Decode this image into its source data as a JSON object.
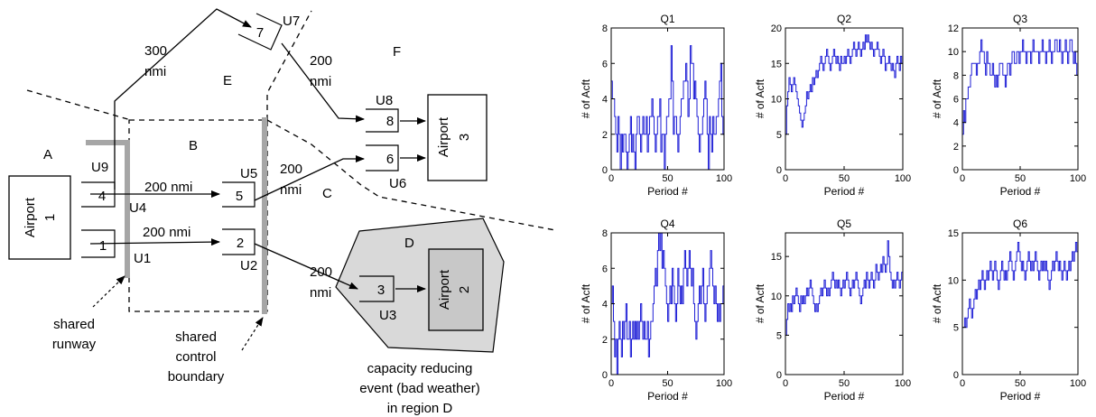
{
  "diagram": {
    "regions": {
      "a": "A",
      "b": "B",
      "c": "C",
      "d": "D",
      "e": "E",
      "f": "F"
    },
    "airports": {
      "airport1": {
        "name": "Airport",
        "number": "1"
      },
      "airport2": {
        "name": "Airport",
        "number": "2"
      },
      "airport3": {
        "name": "Airport",
        "number": "3"
      }
    },
    "queues": {
      "q1": "1",
      "q2": "2",
      "q3": "3",
      "q4": "4",
      "q5": "5",
      "q6": "6",
      "q7": "7",
      "q8": "8"
    },
    "units": {
      "u1": "U1",
      "u2": "U2",
      "u3": "U3",
      "u4": "U4",
      "u5": "U5",
      "u6": "U6",
      "u7": "U7",
      "u8": "U8",
      "u9": "U9"
    },
    "distances": {
      "d_4_5": "200  nmi",
      "d_1_2": "200  nmi",
      "d_5_6_num": "200",
      "d_5_6_unit": "nmi",
      "d_2_3_num": "200",
      "d_2_3_unit": "nmi",
      "d_7_8_num": "200",
      "d_7_8_unit": "nmi",
      "d_4_7_num": "300",
      "d_4_7_unit": "nmi"
    },
    "annotations": {
      "shared_runway_1": "shared",
      "shared_runway_2": "runway",
      "shared_boundary_1": "shared",
      "shared_boundary_2": "control",
      "shared_boundary_3": "boundary",
      "event_1": "capacity reducing",
      "event_2": "event (bad weather)",
      "event_3": "in region D"
    },
    "colors": {
      "shade": "#d9d9d9",
      "shared_bar": "#a6a6a6",
      "line": "#000000"
    }
  },
  "chart_data": [
    {
      "type": "line",
      "title": "Q1",
      "xlabel": "Period #",
      "ylabel": "# of Acft",
      "xlim": [
        0,
        100
      ],
      "ylim": [
        0,
        8
      ],
      "xticks": [
        0,
        50,
        100
      ],
      "yticks": [
        0,
        2,
        4,
        6,
        8
      ],
      "series_color": "#1f1fd6",
      "values": [
        5,
        4,
        4,
        3,
        2,
        1,
        3,
        2,
        0,
        2,
        1,
        2,
        2,
        1,
        0,
        1,
        2,
        3,
        1,
        2,
        1,
        0,
        2,
        3,
        3,
        2,
        1,
        2,
        3,
        2,
        2,
        3,
        1,
        2,
        3,
        3,
        4,
        3,
        2,
        1,
        2,
        3,
        3,
        4,
        1,
        2,
        2,
        0,
        2,
        3,
        3,
        4,
        4,
        7,
        5,
        2,
        3,
        3,
        2,
        1,
        2,
        3,
        4,
        4,
        5,
        5,
        6,
        5,
        3,
        4,
        7,
        6,
        6,
        4,
        5,
        4,
        3,
        2,
        1,
        2,
        2,
        3,
        4,
        5,
        4,
        2,
        0,
        3,
        2,
        1,
        3,
        2,
        2,
        3,
        3,
        4,
        5,
        6,
        3,
        2,
        2
      ]
    },
    {
      "type": "line",
      "title": "Q2",
      "xlabel": "Period #",
      "ylabel": "# of Acft",
      "xlim": [
        0,
        100
      ],
      "ylim": [
        0,
        20
      ],
      "xticks": [
        0,
        50,
        100
      ],
      "yticks": [
        0,
        5,
        10,
        15,
        20
      ],
      "series_color": "#1f1fd6",
      "values": [
        5,
        9,
        11,
        13,
        12,
        11,
        12,
        13,
        12,
        11,
        10,
        9,
        8,
        7,
        6,
        7,
        8,
        9,
        11,
        10,
        11,
        12,
        11,
        13,
        12,
        13,
        14,
        13,
        14,
        15,
        16,
        15,
        14,
        15,
        16,
        17,
        16,
        15,
        14,
        15,
        16,
        17,
        16,
        15,
        16,
        15,
        14,
        16,
        15,
        15,
        16,
        15,
        16,
        17,
        16,
        15,
        16,
        17,
        18,
        17,
        16,
        17,
        18,
        17,
        16,
        17,
        18,
        17,
        19,
        18,
        19,
        18,
        17,
        18,
        17,
        16,
        17,
        17,
        18,
        17,
        16,
        15,
        16,
        17,
        16,
        14,
        15,
        15,
        16,
        15,
        14,
        15,
        14,
        13,
        15,
        16,
        15,
        14,
        16,
        15,
        14
      ]
    },
    {
      "type": "line",
      "title": "Q3",
      "xlabel": "Period #",
      "ylabel": "# of Acft",
      "xlim": [
        0,
        100
      ],
      "ylim": [
        0,
        12
      ],
      "xticks": [
        0,
        50,
        100
      ],
      "yticks": [
        0,
        2,
        4,
        6,
        8,
        10,
        12
      ],
      "series_color": "#1f1fd6",
      "values": [
        3,
        5,
        4,
        6,
        6,
        7,
        7,
        8,
        9,
        9,
        9,
        9,
        8,
        9,
        9,
        10,
        11,
        10,
        10,
        9,
        8,
        10,
        9,
        9,
        8,
        8,
        9,
        8,
        7,
        8,
        7,
        8,
        9,
        9,
        9,
        8,
        8,
        7,
        8,
        9,
        9,
        8,
        9,
        10,
        10,
        9,
        9,
        10,
        10,
        9,
        10,
        10,
        11,
        10,
        10,
        9,
        10,
        10,
        10,
        9,
        10,
        11,
        10,
        10,
        10,
        10,
        9,
        10,
        10,
        11,
        10,
        10,
        9,
        10,
        10,
        11,
        10,
        9,
        10,
        10,
        11,
        11,
        10,
        10,
        11,
        10,
        9,
        10,
        10,
        11,
        10,
        9,
        10,
        11,
        11,
        10,
        9,
        10,
        9,
        8,
        8
      ]
    },
    {
      "type": "line",
      "title": "Q4",
      "xlabel": "Period #",
      "ylabel": "# of Acft",
      "xlim": [
        0,
        100
      ],
      "ylim": [
        0,
        8
      ],
      "xticks": [
        0,
        50,
        100
      ],
      "yticks": [
        0,
        2,
        4,
        6,
        8
      ],
      "series_color": "#1f1fd6",
      "values": [
        4,
        5,
        3,
        1,
        2,
        0,
        2,
        3,
        2,
        1,
        3,
        2,
        3,
        4,
        2,
        2,
        3,
        1,
        2,
        3,
        2,
        3,
        2,
        3,
        2,
        3,
        4,
        3,
        2,
        3,
        2,
        2,
        3,
        1,
        2,
        3,
        3,
        4,
        5,
        6,
        5,
        7,
        8,
        7,
        8,
        6,
        7,
        6,
        5,
        4,
        3,
        4,
        5,
        4,
        6,
        5,
        4,
        3,
        4,
        6,
        5,
        4,
        5,
        4,
        6,
        7,
        6,
        5,
        6,
        7,
        6,
        5,
        6,
        4,
        3,
        2,
        3,
        4,
        5,
        4,
        5,
        6,
        4,
        3,
        4,
        5,
        5,
        6,
        7,
        6,
        5,
        4,
        5,
        4,
        3,
        4,
        3,
        4,
        4,
        5,
        4
      ]
    },
    {
      "type": "line",
      "title": "Q5",
      "xlabel": "Period #",
      "ylabel": "# of Acft",
      "xlim": [
        0,
        100
      ],
      "ylim": [
        0,
        18
      ],
      "xticks": [
        0,
        50,
        100
      ],
      "yticks": [
        0,
        5,
        10,
        15
      ],
      "series_color": "#1f1fd6",
      "values": [
        5,
        7,
        9,
        8,
        9,
        8,
        10,
        9,
        10,
        11,
        10,
        9,
        8,
        10,
        9,
        10,
        9,
        10,
        11,
        10,
        11,
        12,
        11,
        10,
        9,
        8,
        9,
        8,
        9,
        10,
        11,
        10,
        11,
        12,
        11,
        10,
        11,
        10,
        11,
        12,
        13,
        12,
        11,
        12,
        11,
        12,
        11,
        10,
        11,
        12,
        11,
        12,
        13,
        12,
        11,
        10,
        11,
        12,
        11,
        12,
        13,
        12,
        11,
        10,
        9,
        10,
        11,
        12,
        11,
        13,
        12,
        11,
        12,
        13,
        12,
        11,
        12,
        14,
        13,
        12,
        13,
        14,
        13,
        15,
        14,
        13,
        14,
        17,
        15,
        13,
        12,
        11,
        12,
        11,
        12,
        13,
        12,
        11,
        12,
        13,
        12
      ]
    },
    {
      "type": "line",
      "title": "Q6",
      "xlabel": "Period #",
      "ylabel": "# of Acft",
      "xlim": [
        0,
        100
      ],
      "ylim": [
        0,
        15
      ],
      "xticks": [
        0,
        50,
        100
      ],
      "yticks": [
        0,
        5,
        10,
        15
      ],
      "series_color": "#1f1fd6",
      "values": [
        5,
        5,
        6,
        5,
        6,
        7,
        8,
        7,
        6,
        7,
        8,
        9,
        8,
        9,
        10,
        9,
        10,
        11,
        10,
        9,
        10,
        11,
        10,
        11,
        12,
        11,
        10,
        11,
        12,
        11,
        10,
        9,
        10,
        11,
        12,
        11,
        10,
        11,
        10,
        11,
        12,
        13,
        12,
        11,
        10,
        11,
        12,
        13,
        14,
        13,
        12,
        11,
        12,
        11,
        10,
        11,
        12,
        13,
        12,
        11,
        12,
        11,
        12,
        13,
        12,
        11,
        10,
        11,
        12,
        11,
        12,
        11,
        12,
        11,
        10,
        9,
        10,
        11,
        12,
        11,
        12,
        13,
        12,
        11,
        12,
        11,
        10,
        11,
        12,
        11,
        10,
        11,
        12,
        11,
        12,
        13,
        12,
        13,
        14,
        13,
        14
      ]
    }
  ]
}
